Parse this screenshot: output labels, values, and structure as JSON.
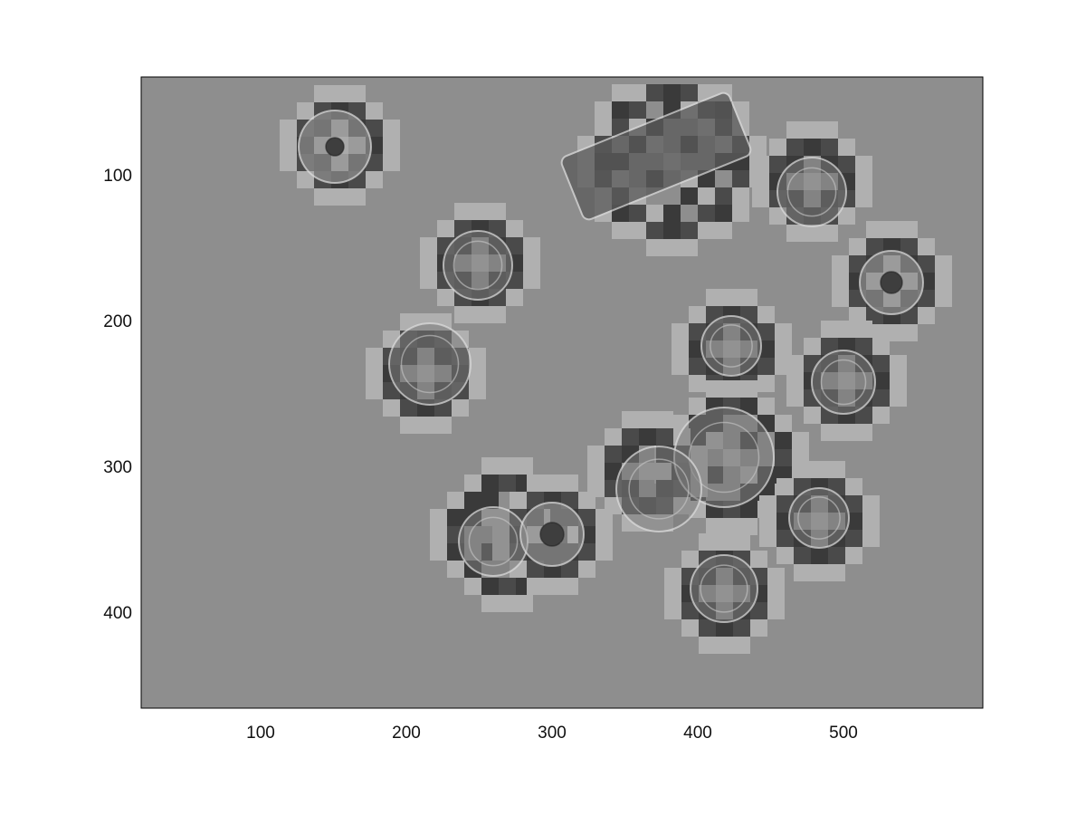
{
  "figure": {
    "x_ticks": [
      "100",
      "200",
      "300",
      "400",
      "500"
    ],
    "y_ticks": [
      "100",
      "200",
      "300",
      "400"
    ]
  },
  "image_content": {
    "background_gray": "#8e8e8e",
    "block_light": "#b0b0b0",
    "block_dark": "#3a3a3a",
    "objects": [
      {
        "name": "washer-top-left",
        "kind": "washer"
      },
      {
        "name": "battery-top-center",
        "kind": "battery"
      },
      {
        "name": "coin-upper-right",
        "kind": "coin"
      },
      {
        "name": "washer-right",
        "kind": "washer"
      },
      {
        "name": "coin-left-middle",
        "kind": "coin"
      },
      {
        "name": "coin-heptagon-left",
        "kind": "coin"
      },
      {
        "name": "coin-center",
        "kind": "coin"
      },
      {
        "name": "coin-right-middle",
        "kind": "coin"
      },
      {
        "name": "coin-large-center",
        "kind": "coin"
      },
      {
        "name": "coin-medium-center",
        "kind": "coin"
      },
      {
        "name": "coin-right-lower",
        "kind": "coin"
      },
      {
        "name": "coin-bottom-left",
        "kind": "coin"
      },
      {
        "name": "washer-bottom",
        "kind": "washer"
      },
      {
        "name": "coin-bottom-center",
        "kind": "coin"
      }
    ]
  }
}
